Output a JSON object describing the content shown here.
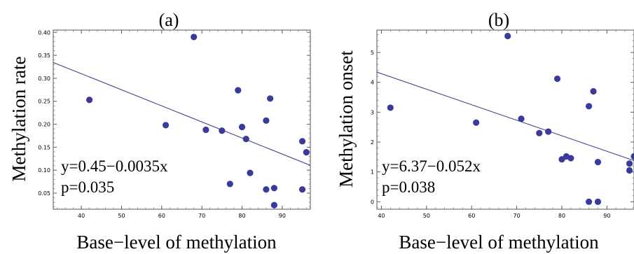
{
  "chart_data": [
    {
      "type": "scatter",
      "panel_label": "(a)",
      "title": "",
      "xlabel": "Base−level of methylation",
      "ylabel": "Methylation rate",
      "xlim": [
        33,
        97
      ],
      "ylim": [
        0.015,
        0.405
      ],
      "xticks": [
        40,
        50,
        60,
        70,
        80,
        90
      ],
      "xtick_labels": [
        "40",
        "50",
        "60",
        "70",
        "80",
        "90"
      ],
      "yticks": [
        0.05,
        0.1,
        0.15,
        0.2,
        0.25,
        0.3,
        0.35,
        0.4
      ],
      "ytick_labels": [
        "0.05",
        "0.10",
        "0.15",
        "0.20",
        "0.25",
        "0.30",
        "0.35",
        "0.40"
      ],
      "grid": false,
      "point_color": "#3a3a9a",
      "line_color": "#2e2e8c",
      "fit": {
        "intercept": 0.45,
        "slope": -0.0035
      },
      "annotations": [
        "y=0.45−0.0035x",
        "p=0.035"
      ],
      "points": [
        {
          "x": 42,
          "y": 0.253
        },
        {
          "x": 61,
          "y": 0.198
        },
        {
          "x": 68,
          "y": 0.39
        },
        {
          "x": 71,
          "y": 0.188
        },
        {
          "x": 75,
          "y": 0.186
        },
        {
          "x": 77,
          "y": 0.07
        },
        {
          "x": 79,
          "y": 0.274
        },
        {
          "x": 80,
          "y": 0.194
        },
        {
          "x": 81,
          "y": 0.168
        },
        {
          "x": 82,
          "y": 0.094
        },
        {
          "x": 86,
          "y": 0.208
        },
        {
          "x": 86,
          "y": 0.058
        },
        {
          "x": 87,
          "y": 0.256
        },
        {
          "x": 88,
          "y": 0.061
        },
        {
          "x": 88,
          "y": 0.024
        },
        {
          "x": 95,
          "y": 0.163
        },
        {
          "x": 95,
          "y": 0.058
        },
        {
          "x": 96,
          "y": 0.139
        }
      ]
    },
    {
      "type": "scatter",
      "panel_label": "(b)",
      "title": "",
      "xlabel": "Base−level of methylation",
      "ylabel": "Methylation onset",
      "xlim": [
        39,
        96
      ],
      "ylim": [
        -0.25,
        5.75
      ],
      "xticks": [
        40,
        50,
        60,
        70,
        80,
        90
      ],
      "xtick_labels": [
        "40",
        "50",
        "60",
        "70",
        "80",
        "90"
      ],
      "yticks": [
        0,
        1,
        2,
        3,
        4,
        5
      ],
      "ytick_labels": [
        "0",
        "1",
        "2",
        "3",
        "4",
        "5"
      ],
      "grid": false,
      "point_color": "#3a3a9a",
      "line_color": "#2e2e8c",
      "fit": {
        "intercept": 6.37,
        "slope": -0.052
      },
      "annotations": [
        "y=6.37−0.052x",
        "p=0.038"
      ],
      "points": [
        {
          "x": 42,
          "y": 3.15
        },
        {
          "x": 61,
          "y": 2.65
        },
        {
          "x": 68,
          "y": 5.55
        },
        {
          "x": 71,
          "y": 2.78
        },
        {
          "x": 75,
          "y": 2.3
        },
        {
          "x": 77,
          "y": 2.35
        },
        {
          "x": 79,
          "y": 4.12
        },
        {
          "x": 80,
          "y": 1.42
        },
        {
          "x": 81,
          "y": 1.52
        },
        {
          "x": 82,
          "y": 1.46
        },
        {
          "x": 86,
          "y": 3.2
        },
        {
          "x": 86,
          "y": 0.0
        },
        {
          "x": 87,
          "y": 3.7
        },
        {
          "x": 88,
          "y": 1.33
        },
        {
          "x": 88,
          "y": 0.0
        },
        {
          "x": 95,
          "y": 1.28
        },
        {
          "x": 95,
          "y": 1.05
        },
        {
          "x": 96,
          "y": 1.52
        }
      ]
    }
  ]
}
